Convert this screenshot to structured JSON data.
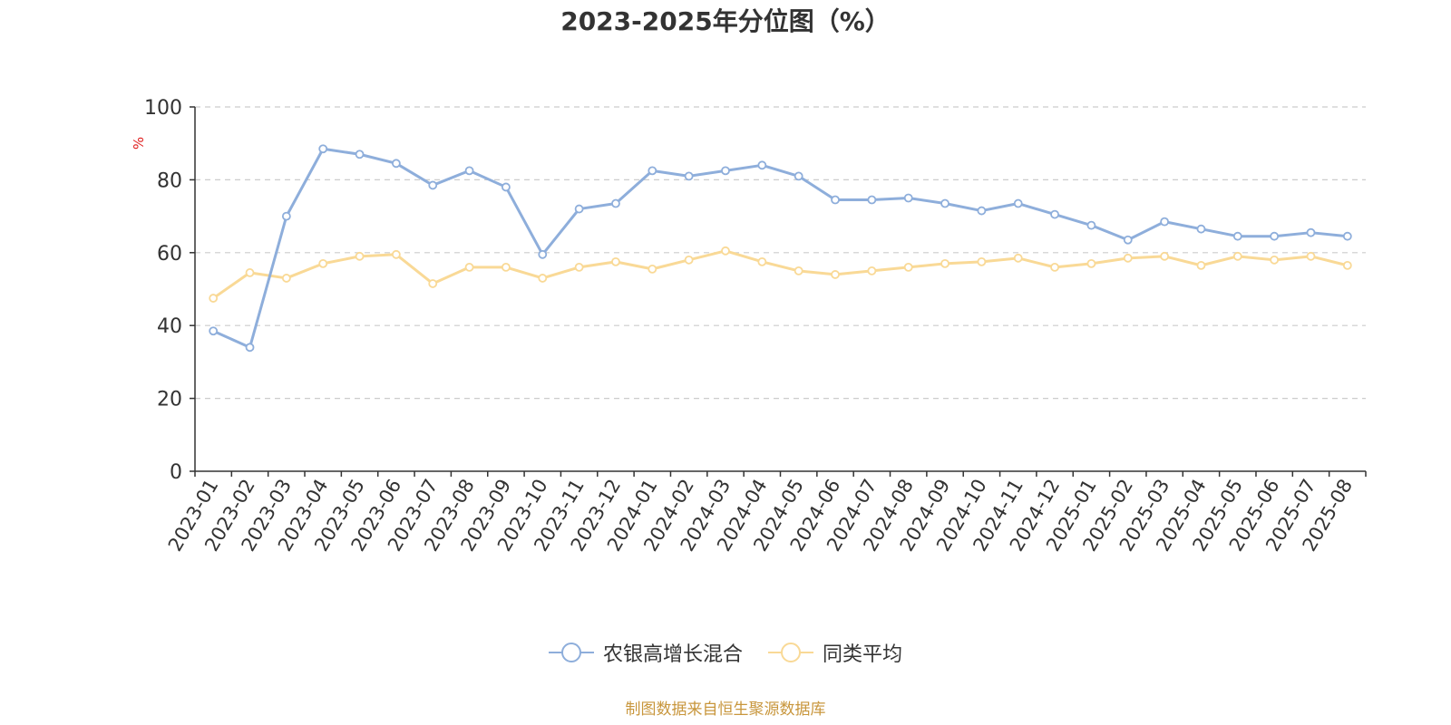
{
  "chart_data": {
    "type": "line",
    "title": "2023-2025年分位图（%）",
    "ylabel": "%",
    "ylim": [
      0,
      100
    ],
    "yticks": [
      0,
      20,
      40,
      60,
      80,
      100
    ],
    "grid": true,
    "legend_position": "bottom",
    "categories": [
      "2023-01",
      "2023-02",
      "2023-03",
      "2023-04",
      "2023-05",
      "2023-06",
      "2023-07",
      "2023-08",
      "2023-09",
      "2023-10",
      "2023-11",
      "2023-12",
      "2024-01",
      "2024-02",
      "2024-03",
      "2024-04",
      "2024-05",
      "2024-06",
      "2024-07",
      "2024-08",
      "2024-09",
      "2024-10",
      "2024-11",
      "2024-12",
      "2025-01",
      "2025-02",
      "2025-03",
      "2025-04",
      "2025-05",
      "2025-06",
      "2025-07",
      "2025-08"
    ],
    "series": [
      {
        "name": "农银高增长混合",
        "color": "#8eaedb",
        "values": [
          38.5,
          34,
          70,
          88.5,
          87,
          84.5,
          78.5,
          82.5,
          78,
          59.5,
          72,
          73.5,
          82.5,
          81,
          82.5,
          84,
          81,
          74.5,
          74.5,
          75,
          73.5,
          71.5,
          73.5,
          70.5,
          67.5,
          63.5,
          68.5,
          66.5,
          64.5,
          64.5,
          65.5,
          64.5
        ]
      },
      {
        "name": "同类平均",
        "color": "#f9d996",
        "values": [
          47.5,
          54.5,
          53,
          57,
          59,
          59.5,
          51.5,
          56,
          56,
          53,
          56,
          57.5,
          55.5,
          58,
          60.5,
          57.5,
          55,
          54,
          55,
          56,
          57,
          57.5,
          58.5,
          56,
          57,
          58.5,
          59,
          56.5,
          59,
          58,
          59,
          56.5
        ]
      }
    ]
  },
  "source": {
    "text": "制图数据来自恒生聚源数据库",
    "color": "#c8963c"
  }
}
